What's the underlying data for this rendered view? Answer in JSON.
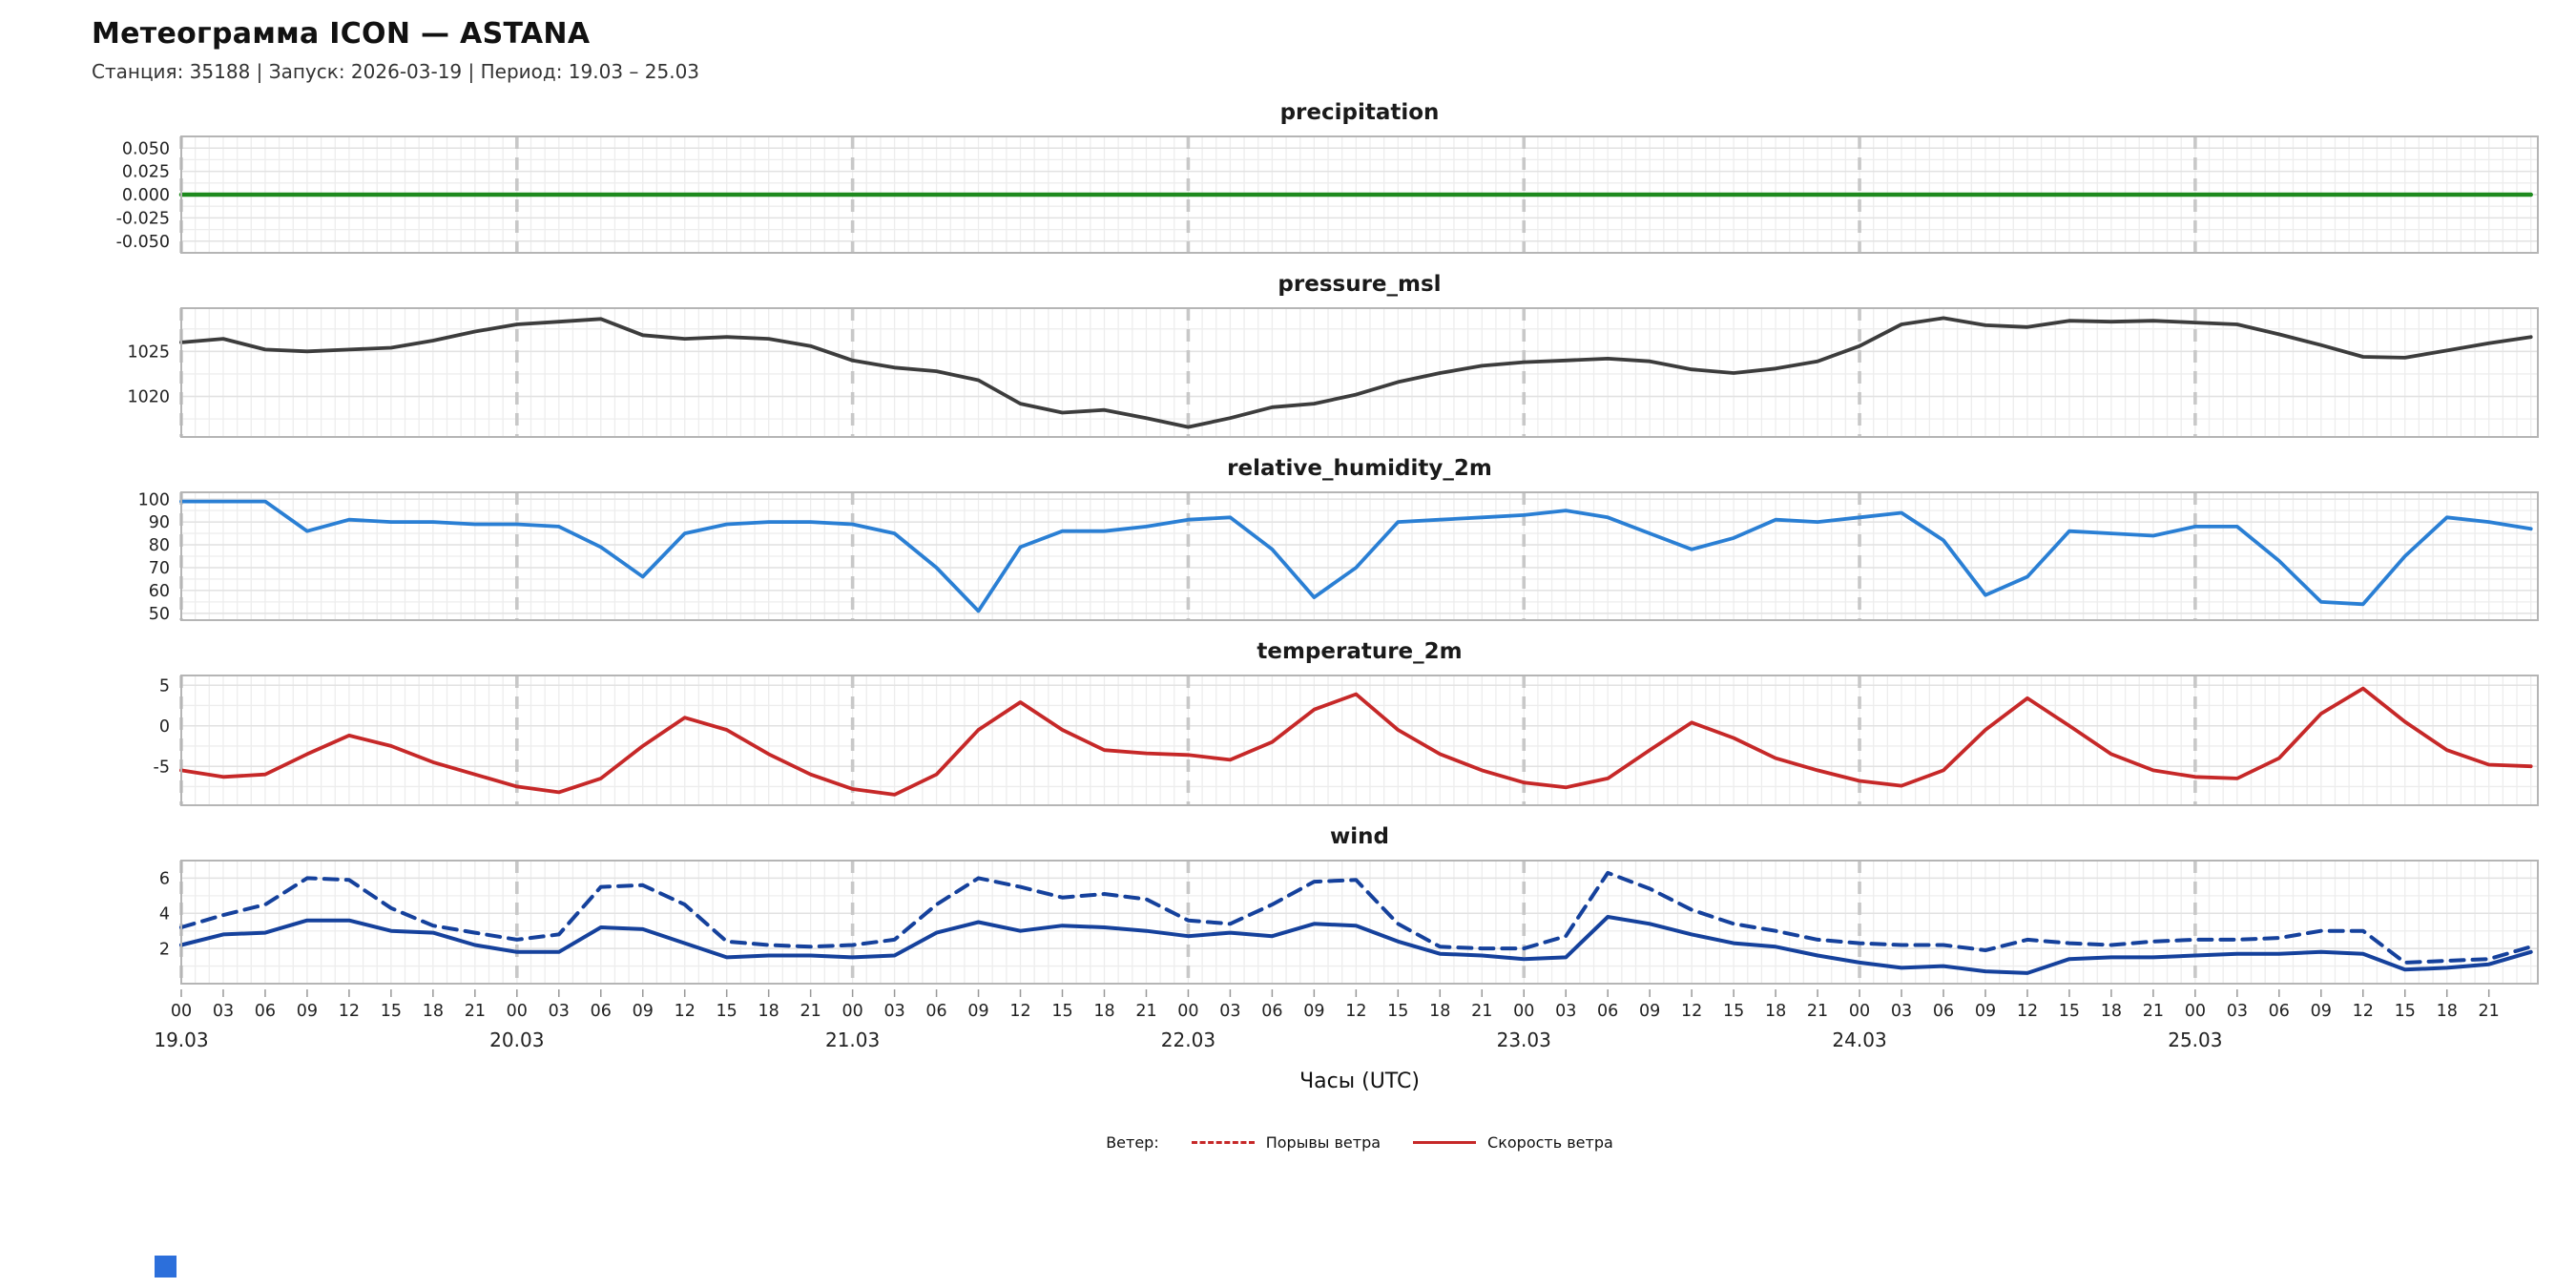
{
  "header": {
    "title": "Метеограмма ICON — ASTANA",
    "subtitle": "Станция: 35188  | Запуск: 2026-03-19  | Период: 19.03 – 25.03"
  },
  "xaxis": {
    "label": "Часы (UTC)",
    "start_hour": 0,
    "step_hours": 3,
    "end_hour": 168,
    "xmax": 168.5,
    "hour_cycle": [
      "00",
      "03",
      "06",
      "09",
      "12",
      "15",
      "18",
      "21"
    ],
    "day_labels": [
      "19.03",
      "20.03",
      "21.03",
      "22.03",
      "23.03",
      "24.03",
      "25.03"
    ]
  },
  "legend": {
    "prefix": "Ветер:",
    "items": [
      {
        "label": "Порывы ветра",
        "style": "dashed",
        "color": "#c62828"
      },
      {
        "label": "Скорость ветра",
        "style": "solid",
        "color": "#c62828"
      }
    ]
  },
  "colors": {
    "precipitation": "#1e8a1e",
    "pressure": "#3c3c3c",
    "humidity": "#2a7fd4",
    "temperature": "#c62828",
    "wind": "#15419c",
    "day_line": "#c8c8c8",
    "grid": "#ededed",
    "frame": "#b5b5b5"
  },
  "chart_data": [
    {
      "type": "line",
      "title": "precipitation",
      "ylim": [
        -0.0625,
        0.0625
      ],
      "grid_y_step": 0.0125,
      "yticks": [
        {
          "v": 0.05,
          "label": "0.050"
        },
        {
          "v": 0.025,
          "label": "0.025"
        },
        {
          "v": 0.0,
          "label": "0.000"
        },
        {
          "v": -0.025,
          "label": "-0.025"
        },
        {
          "v": -0.05,
          "label": "-0.050"
        }
      ],
      "series": [
        {
          "name": "precipitation",
          "color": "#1e8a1e",
          "dash": false,
          "width": 4.5,
          "values": [
            0,
            0,
            0,
            0,
            0,
            0,
            0,
            0,
            0,
            0,
            0,
            0,
            0,
            0,
            0,
            0,
            0,
            0,
            0,
            0,
            0,
            0,
            0,
            0,
            0,
            0,
            0,
            0,
            0,
            0,
            0,
            0,
            0,
            0,
            0,
            0,
            0,
            0,
            0,
            0,
            0,
            0,
            0,
            0,
            0,
            0,
            0,
            0,
            0,
            0,
            0,
            0,
            0,
            0,
            0,
            0,
            0
          ]
        }
      ]
    },
    {
      "type": "line",
      "title": "pressure_msl",
      "ylim": [
        1015.5,
        1029.8
      ],
      "grid_y_step": 2.5,
      "yticks": [
        {
          "v": 1025,
          "label": "1025"
        },
        {
          "v": 1020,
          "label": "1020"
        }
      ],
      "series": [
        {
          "name": "pressure_msl",
          "color": "#3c3c3c",
          "dash": false,
          "width": 3.8,
          "values": [
            1026.0,
            1026.4,
            1025.2,
            1025.0,
            1025.2,
            1025.4,
            1026.2,
            1027.2,
            1028.0,
            1028.3,
            1028.6,
            1026.8,
            1026.4,
            1026.6,
            1026.4,
            1025.6,
            1024.0,
            1023.2,
            1022.8,
            1021.8,
            1019.2,
            1018.2,
            1018.5,
            1017.6,
            1016.6,
            1017.6,
            1018.8,
            1019.2,
            1020.2,
            1021.6,
            1022.6,
            1023.4,
            1023.8,
            1024.0,
            1024.2,
            1023.9,
            1023.0,
            1022.6,
            1023.1,
            1023.9,
            1025.6,
            1028.0,
            1028.7,
            1027.9,
            1027.7,
            1028.4,
            1028.3,
            1028.4,
            1028.2,
            1028.0,
            1026.9,
            1025.7,
            1024.4,
            1024.3,
            1025.1,
            1025.9,
            1026.6
          ]
        }
      ]
    },
    {
      "type": "line",
      "title": "relative_humidity_2m",
      "ylim": [
        47,
        103
      ],
      "grid_y_step": 5,
      "yticks": [
        {
          "v": 100,
          "label": "100"
        },
        {
          "v": 90,
          "label": "90"
        },
        {
          "v": 80,
          "label": "80"
        },
        {
          "v": 70,
          "label": "70"
        },
        {
          "v": 60,
          "label": "60"
        },
        {
          "v": 50,
          "label": "50"
        }
      ],
      "series": [
        {
          "name": "relative_humidity_2m",
          "color": "#2a7fd4",
          "dash": false,
          "width": 3.8,
          "values": [
            99,
            99,
            99,
            86,
            91,
            90,
            90,
            89,
            89,
            88,
            79,
            66,
            85,
            89,
            90,
            90,
            89,
            85,
            70,
            51,
            79,
            86,
            86,
            88,
            91,
            92,
            78,
            57,
            70,
            90,
            91,
            92,
            93,
            95,
            92,
            85,
            78,
            83,
            91,
            90,
            92,
            94,
            82,
            58,
            66,
            86,
            85,
            84,
            88,
            88,
            73,
            55,
            54,
            75,
            92,
            90,
            87
          ]
        }
      ]
    },
    {
      "type": "line",
      "title": "temperature_2m",
      "ylim": [
        -9.8,
        6.2
      ],
      "grid_y_step": 2.5,
      "yticks": [
        {
          "v": 5,
          "label": "5"
        },
        {
          "v": 0,
          "label": "0"
        },
        {
          "v": -5,
          "label": "-5"
        }
      ],
      "series": [
        {
          "name": "temperature_2m",
          "color": "#c62828",
          "dash": false,
          "width": 3.8,
          "values": [
            -5.5,
            -6.3,
            -6.0,
            -3.5,
            -1.2,
            -2.5,
            -4.5,
            -6.0,
            -7.5,
            -8.2,
            -6.5,
            -2.5,
            1.0,
            -0.5,
            -3.5,
            -6.0,
            -7.8,
            -8.5,
            -6.0,
            -0.5,
            2.9,
            -0.5,
            -3.0,
            -3.4,
            -3.6,
            -4.2,
            -2.0,
            2.0,
            3.9,
            -0.5,
            -3.5,
            -5.5,
            -7.0,
            -7.6,
            -6.5,
            -3.0,
            0.4,
            -1.5,
            -4.0,
            -5.5,
            -6.8,
            -7.4,
            -5.5,
            -0.5,
            3.4,
            0.0,
            -3.5,
            -5.5,
            -6.3,
            -6.5,
            -4.0,
            1.5,
            4.6,
            0.5,
            -3.0,
            -4.8,
            -5.0
          ]
        }
      ]
    },
    {
      "type": "line",
      "title": "wind",
      "ylim": [
        0,
        7
      ],
      "grid_y_step": 1,
      "yticks": [
        {
          "v": 6,
          "label": "6"
        },
        {
          "v": 4,
          "label": "4"
        },
        {
          "v": 2,
          "label": "2"
        }
      ],
      "series": [
        {
          "name": "Порывы ветра",
          "color": "#15419c",
          "dash": true,
          "width": 4,
          "values": [
            3.2,
            3.9,
            4.5,
            6.0,
            5.9,
            4.3,
            3.3,
            2.9,
            2.5,
            2.8,
            5.5,
            5.6,
            4.5,
            2.4,
            2.2,
            2.1,
            2.2,
            2.5,
            4.5,
            6.0,
            5.5,
            4.9,
            5.1,
            4.8,
            3.6,
            3.4,
            4.5,
            5.8,
            5.9,
            3.4,
            2.1,
            2.0,
            2.0,
            2.7,
            6.3,
            5.4,
            4.2,
            3.4,
            3.0,
            2.5,
            2.3,
            2.2,
            2.2,
            1.9,
            2.5,
            2.3,
            2.2,
            2.4,
            2.5,
            2.5,
            2.6,
            3.0,
            3.0,
            1.2,
            1.3,
            1.4,
            2.1
          ]
        },
        {
          "name": "Скорость ветра",
          "color": "#15419c",
          "dash": false,
          "width": 4,
          "values": [
            2.2,
            2.8,
            2.9,
            3.6,
            3.6,
            3.0,
            2.9,
            2.2,
            1.8,
            1.8,
            3.2,
            3.1,
            2.3,
            1.5,
            1.6,
            1.6,
            1.5,
            1.6,
            2.9,
            3.5,
            3.0,
            3.3,
            3.2,
            3.0,
            2.7,
            2.9,
            2.7,
            3.4,
            3.3,
            2.4,
            1.7,
            1.6,
            1.4,
            1.5,
            3.8,
            3.4,
            2.8,
            2.3,
            2.1,
            1.6,
            1.2,
            0.9,
            1.0,
            0.7,
            0.6,
            1.4,
            1.5,
            1.5,
            1.6,
            1.7,
            1.7,
            1.8,
            1.7,
            0.8,
            0.9,
            1.1,
            1.8
          ]
        }
      ]
    }
  ]
}
